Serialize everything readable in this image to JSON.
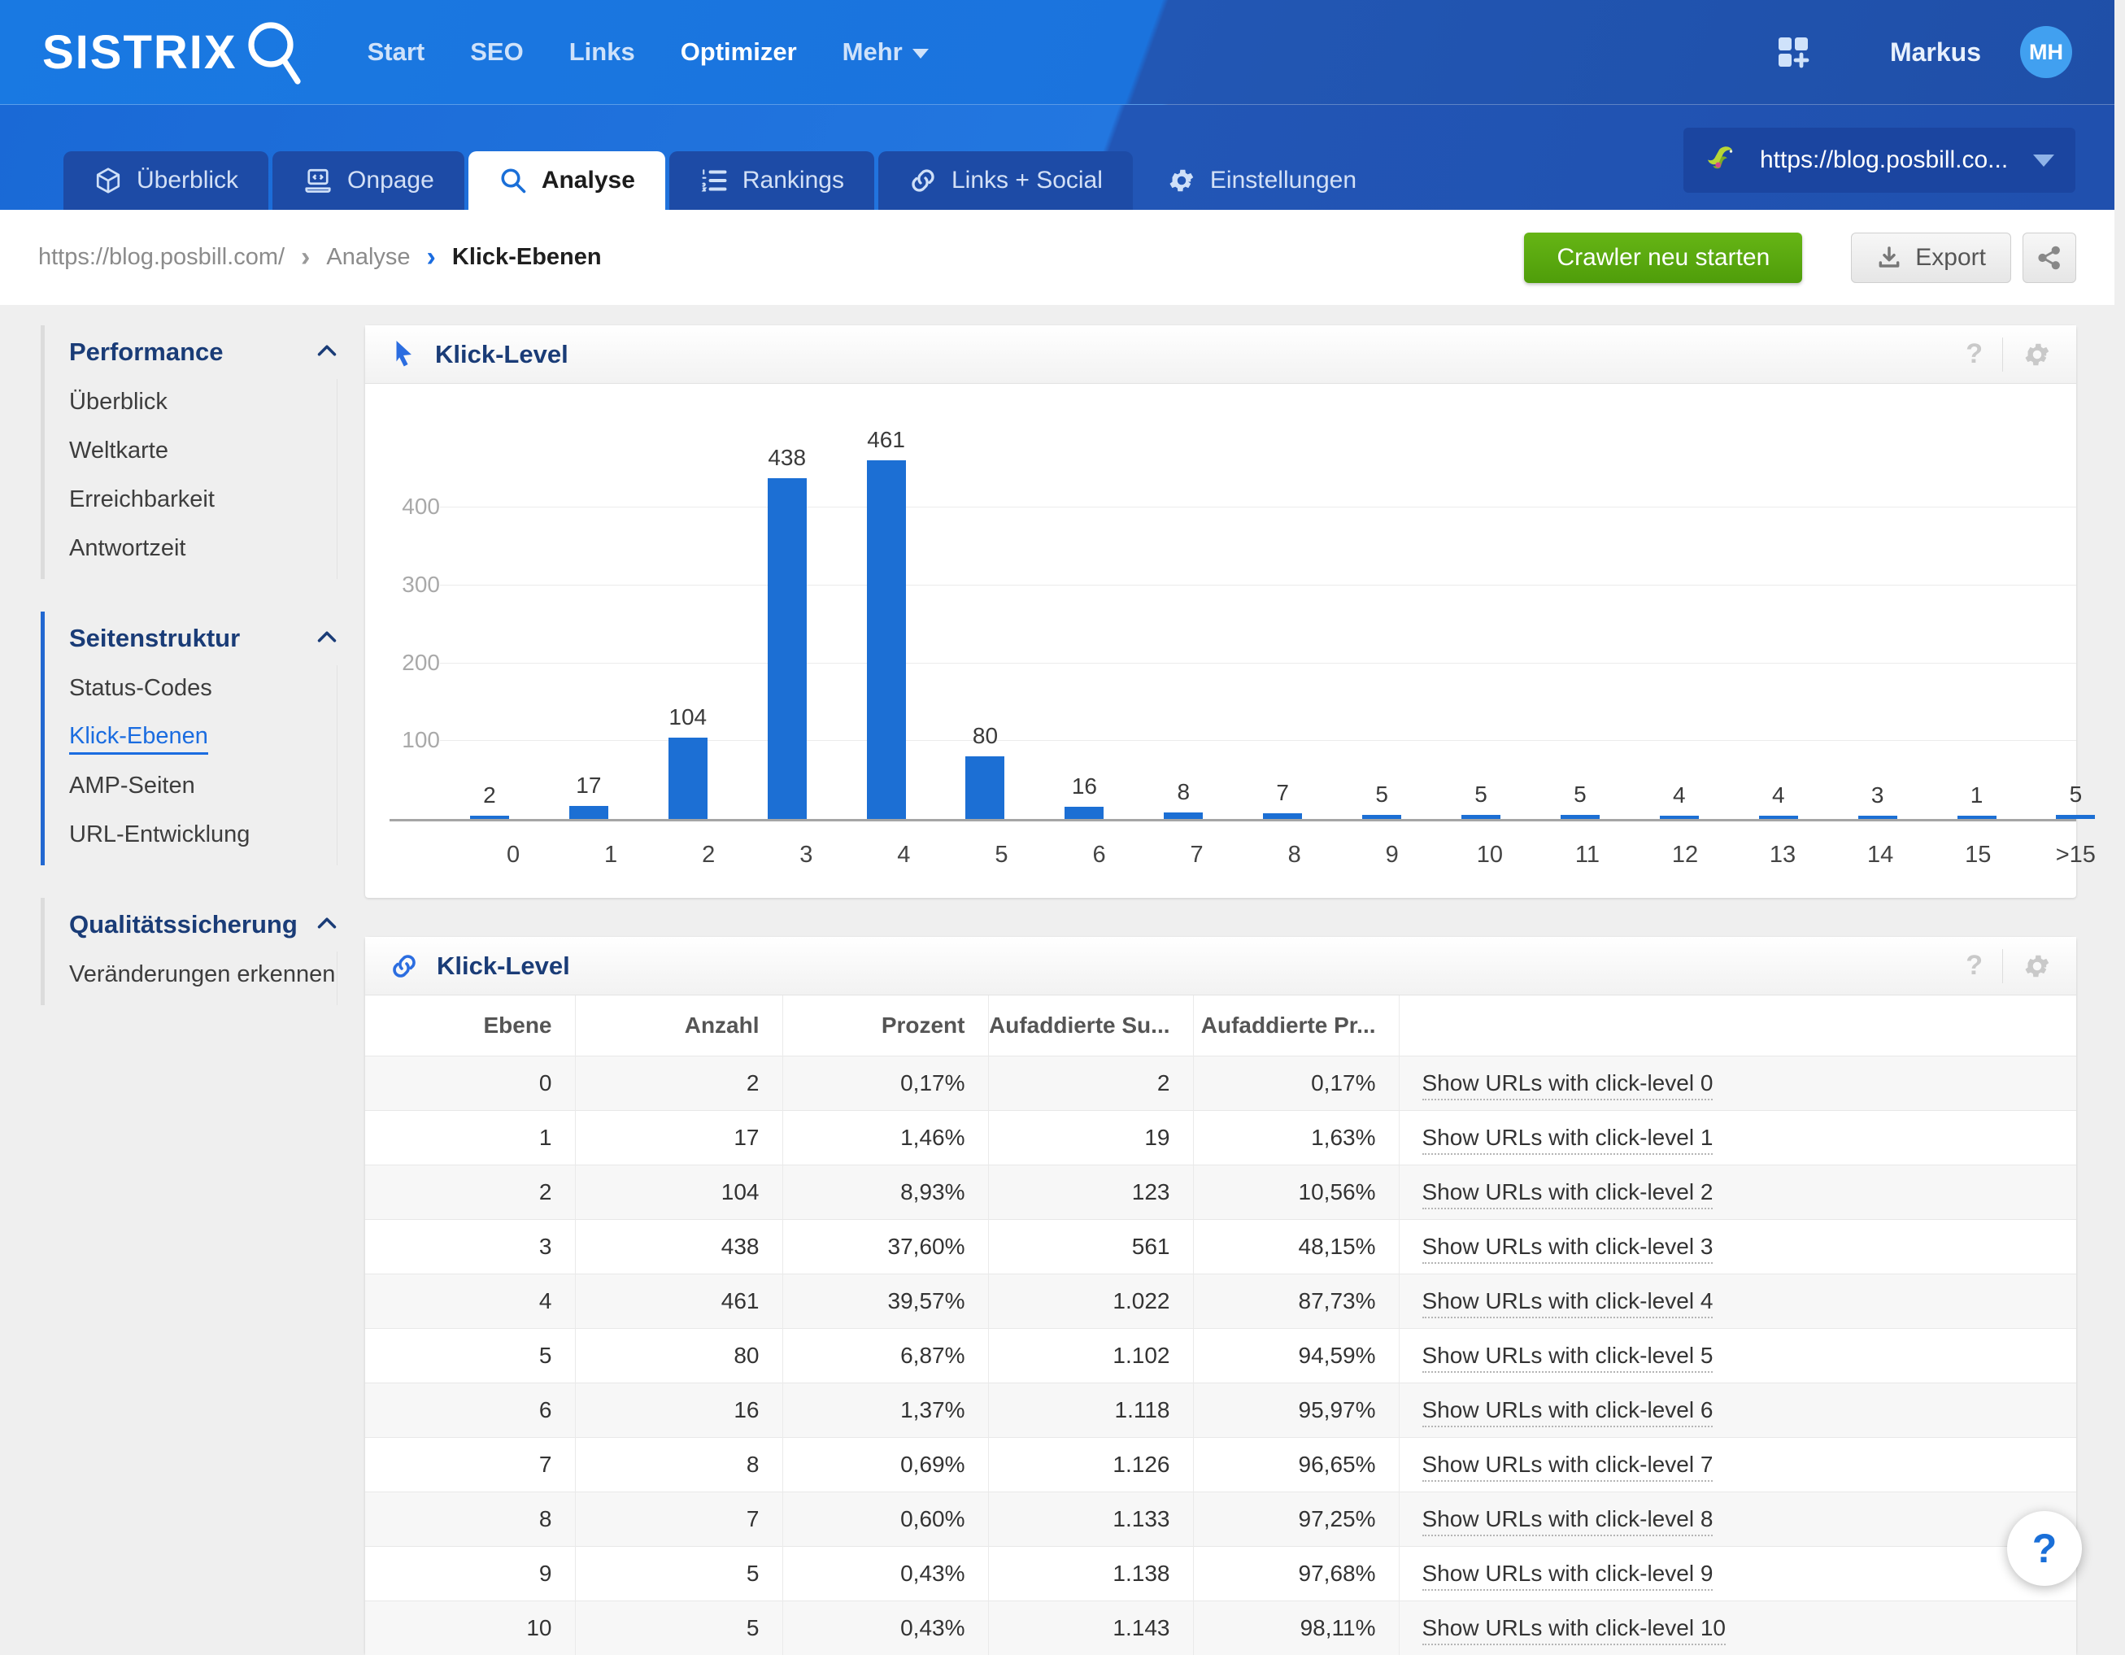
{
  "topbar": {
    "logo": "SISTRIX",
    "nav": [
      {
        "label": "Start",
        "active": false
      },
      {
        "label": "SEO",
        "active": false
      },
      {
        "label": "Links",
        "active": false
      },
      {
        "label": "Optimizer",
        "active": true
      },
      {
        "label": "Mehr",
        "active": false,
        "caret": true
      }
    ],
    "user_name": "Markus",
    "avatar_initials": "MH"
  },
  "tabbar": {
    "tabs": [
      {
        "label": "Überblick",
        "icon": "cube-icon",
        "active": false,
        "flat": false
      },
      {
        "label": "Onpage",
        "icon": "laptop-icon",
        "active": false,
        "flat": false
      },
      {
        "label": "Analyse",
        "icon": "magnifier-icon",
        "active": true,
        "flat": false
      },
      {
        "label": "Rankings",
        "icon": "ordered-list-icon",
        "active": false,
        "flat": false
      },
      {
        "label": "Links + Social",
        "icon": "link-icon",
        "active": false,
        "flat": false
      },
      {
        "label": "Einstellungen",
        "icon": "gear-icon",
        "active": false,
        "flat": true
      }
    ],
    "project": {
      "url": "https://blog.posbill.co...",
      "favicon": "hummingbird-favicon"
    }
  },
  "breadcrumb": {
    "items": [
      "https://blog.posbill.com/",
      "Analyse",
      "Klick-Ebenen"
    ]
  },
  "actions": {
    "crawler_button": "Crawler neu starten",
    "export_button": "Export"
  },
  "sidebar": {
    "sections": [
      {
        "title": "Performance",
        "active_section": false,
        "items": [
          {
            "label": "Überblick",
            "active": false
          },
          {
            "label": "Weltkarte",
            "active": false
          },
          {
            "label": "Erreichbarkeit",
            "active": false
          },
          {
            "label": "Antwortzeit",
            "active": false
          }
        ]
      },
      {
        "title": "Seitenstruktur",
        "active_section": true,
        "items": [
          {
            "label": "Status-Codes",
            "active": false
          },
          {
            "label": "Klick-Ebenen",
            "active": true
          },
          {
            "label": "AMP-Seiten",
            "active": false
          },
          {
            "label": "URL-Entwicklung",
            "active": false
          }
        ]
      },
      {
        "title": "Qualitätssicherung",
        "active_section": false,
        "items": [
          {
            "label": "Veränderungen erkennen",
            "active": false
          }
        ]
      }
    ]
  },
  "chart_panel": {
    "title": "Klick-Level"
  },
  "chart_data": {
    "type": "bar",
    "title": "Klick-Level",
    "categories": [
      "0",
      "1",
      "2",
      "3",
      "4",
      "5",
      "6",
      "7",
      "8",
      "9",
      "10",
      "11",
      "12",
      "13",
      "14",
      "15",
      ">15"
    ],
    "values": [
      2,
      17,
      104,
      438,
      461,
      80,
      16,
      8,
      7,
      5,
      5,
      5,
      4,
      4,
      3,
      1,
      5
    ],
    "value_labels": [
      "2",
      "17",
      "104",
      "438",
      "461",
      "80",
      "16",
      "8",
      "7",
      "5",
      "5",
      "5",
      "4",
      "4",
      "3",
      "1",
      "5"
    ],
    "xlabel": "",
    "ylabel": "",
    "yticks": [
      100,
      200,
      300,
      400
    ],
    "ylim": [
      0,
      500
    ],
    "bar_color": "#1c6fd4",
    "grid": true,
    "legend_position": "none"
  },
  "table_panel": {
    "title": "Klick-Level",
    "headers": [
      "Ebene",
      "Anzahl",
      "Prozent",
      "Aufaddierte Su...",
      "Aufaddierte Pr...",
      ""
    ],
    "rows": [
      [
        "0",
        "2",
        "0,17%",
        "2",
        "0,17%",
        "Show URLs with click-level 0"
      ],
      [
        "1",
        "17",
        "1,46%",
        "19",
        "1,63%",
        "Show URLs with click-level 1"
      ],
      [
        "2",
        "104",
        "8,93%",
        "123",
        "10,56%",
        "Show URLs with click-level 2"
      ],
      [
        "3",
        "438",
        "37,60%",
        "561",
        "48,15%",
        "Show URLs with click-level 3"
      ],
      [
        "4",
        "461",
        "39,57%",
        "1.022",
        "87,73%",
        "Show URLs with click-level 4"
      ],
      [
        "5",
        "80",
        "6,87%",
        "1.102",
        "94,59%",
        "Show URLs with click-level 5"
      ],
      [
        "6",
        "16",
        "1,37%",
        "1.118",
        "95,97%",
        "Show URLs with click-level 6"
      ],
      [
        "7",
        "8",
        "0,69%",
        "1.126",
        "96,65%",
        "Show URLs with click-level 7"
      ],
      [
        "8",
        "7",
        "0,60%",
        "1.133",
        "97,25%",
        "Show URLs with click-level 8"
      ],
      [
        "9",
        "5",
        "0,43%",
        "1.138",
        "97,68%",
        "Show URLs with click-level 9"
      ],
      [
        "10",
        "5",
        "0,43%",
        "1.143",
        "98,11%",
        "Show URLs with click-level 10"
      ]
    ]
  },
  "help_button": "?"
}
